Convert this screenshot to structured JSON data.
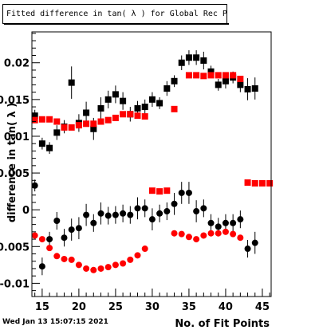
{
  "page": {
    "title": "Fitted difference in tan( λ ) for Global Rec Pion NoHits",
    "footer_date": "Wed Jan 13 15:07:15 2021"
  },
  "chart_data": {
    "type": "scatter",
    "title": "Fitted difference in tan( λ ) for Global Rec Pion NoHits",
    "xlabel": "No. of Fit Points",
    "ylabel": "difference in tan( λ )",
    "xlim": [
      13.6,
      46.2
    ],
    "ylim": [
      -0.0118,
      0.0242
    ],
    "x_ticks": [
      15,
      20,
      25,
      30,
      35,
      40,
      45
    ],
    "y_ticks": [
      {
        "value": -0.01,
        "label": "-0.01"
      },
      {
        "value": -0.005,
        "label": "-0.005"
      },
      {
        "value": 0,
        "label": "0"
      },
      {
        "value": 0.005,
        "label": "0.005"
      },
      {
        "value": 0.01,
        "label": "0.01"
      },
      {
        "value": 0.015,
        "label": "0.015"
      },
      {
        "value": 0.02,
        "label": "0.02"
      }
    ],
    "grid": false,
    "colors": {
      "black": "#000000",
      "red": "#ff0000"
    },
    "series": [
      {
        "marker": "square",
        "color": "#000000",
        "points": [
          {
            "x": 14,
            "y": 0.0128,
            "err": 0.0008
          },
          {
            "x": 15,
            "y": 0.009,
            "err": 0.0008
          },
          {
            "x": 16,
            "y": 0.0084,
            "err": 0.0008
          },
          {
            "x": 17,
            "y": 0.0105,
            "err": 0.001
          },
          {
            "x": 18,
            "y": 0.0113,
            "err": 0.0009
          },
          {
            "x": 19,
            "y": 0.0173,
            "err": 0.0022
          },
          {
            "x": 20,
            "y": 0.0118,
            "err": 0.0012
          },
          {
            "x": 21,
            "y": 0.0132,
            "err": 0.0015
          },
          {
            "x": 22,
            "y": 0.011,
            "err": 0.0015
          },
          {
            "x": 23,
            "y": 0.0138,
            "err": 0.0015
          },
          {
            "x": 24,
            "y": 0.015,
            "err": 0.0012
          },
          {
            "x": 25,
            "y": 0.0157,
            "err": 0.0012
          },
          {
            "x": 26,
            "y": 0.0148,
            "err": 0.0012
          },
          {
            "x": 27,
            "y": 0.013,
            "err": 0.001
          },
          {
            "x": 28,
            "y": 0.0138,
            "err": 0.001
          },
          {
            "x": 29,
            "y": 0.014,
            "err": 0.001
          },
          {
            "x": 30,
            "y": 0.015,
            "err": 0.001
          },
          {
            "x": 31,
            "y": 0.0145,
            "err": 0.0008
          },
          {
            "x": 32,
            "y": 0.0165,
            "err": 0.001
          },
          {
            "x": 33,
            "y": 0.0175,
            "err": 0.0008
          },
          {
            "x": 34,
            "y": 0.02,
            "err": 0.001
          },
          {
            "x": 35,
            "y": 0.0207,
            "err": 0.001
          },
          {
            "x": 36,
            "y": 0.0207,
            "err": 0.001
          },
          {
            "x": 37,
            "y": 0.0203,
            "err": 0.0012
          },
          {
            "x": 38,
            "y": 0.0188,
            "err": 0.0008
          },
          {
            "x": 39,
            "y": 0.017,
            "err": 0.0008
          },
          {
            "x": 40,
            "y": 0.0175,
            "err": 0.001
          },
          {
            "x": 41,
            "y": 0.018,
            "err": 0.0008
          },
          {
            "x": 42,
            "y": 0.017,
            "err": 0.001
          },
          {
            "x": 43,
            "y": 0.0164,
            "err": 0.0015
          },
          {
            "x": 44,
            "y": 0.0165,
            "err": 0.0015
          }
        ]
      },
      {
        "marker": "square",
        "color": "#ff0000",
        "points": [
          {
            "x": 14,
            "y": 0.0122,
            "err": 0.0003
          },
          {
            "x": 15,
            "y": 0.0123,
            "err": 0.0003
          },
          {
            "x": 16,
            "y": 0.0123,
            "err": 0.0003
          },
          {
            "x": 17,
            "y": 0.012,
            "err": 0.0003
          },
          {
            "x": 18,
            "y": 0.0112,
            "err": 0.0003
          },
          {
            "x": 19,
            "y": 0.0112,
            "err": 0.0003
          },
          {
            "x": 20,
            "y": 0.0115,
            "err": 0.0003
          },
          {
            "x": 21,
            "y": 0.0117,
            "err": 0.0003
          },
          {
            "x": 22,
            "y": 0.0117,
            "err": 0.0003
          },
          {
            "x": 23,
            "y": 0.012,
            "err": 0.0003
          },
          {
            "x": 24,
            "y": 0.0122,
            "err": 0.0003
          },
          {
            "x": 25,
            "y": 0.0125,
            "err": 0.0003
          },
          {
            "x": 26,
            "y": 0.013,
            "err": 0.0003
          },
          {
            "x": 27,
            "y": 0.013,
            "err": 0.0003
          },
          {
            "x": 28,
            "y": 0.0128,
            "err": 0.0003
          },
          {
            "x": 29,
            "y": 0.0127,
            "err": 0.0003
          },
          {
            "x": 33,
            "y": 0.0137,
            "err": 0.0003
          },
          {
            "x": 35,
            "y": 0.0183,
            "err": 0.0003
          },
          {
            "x": 36,
            "y": 0.0183,
            "err": 0.0003
          },
          {
            "x": 37,
            "y": 0.0182,
            "err": 0.0003
          },
          {
            "x": 38,
            "y": 0.0183,
            "err": 0.0003
          },
          {
            "x": 39,
            "y": 0.0183,
            "err": 0.0003
          },
          {
            "x": 40,
            "y": 0.0183,
            "err": 0.0003
          },
          {
            "x": 41,
            "y": 0.0183,
            "err": 0.0003
          },
          {
            "x": 42,
            "y": 0.0178,
            "err": 0.0003
          },
          {
            "x": 30,
            "y": 0.0026,
            "err": 0.0002
          },
          {
            "x": 31,
            "y": 0.0025,
            "err": 0.0002
          },
          {
            "x": 32,
            "y": 0.0026,
            "err": 0.0002
          },
          {
            "x": 43,
            "y": 0.0037,
            "err": 0.0002
          },
          {
            "x": 44,
            "y": 0.0036,
            "err": 0.0002
          },
          {
            "x": 45,
            "y": 0.0036,
            "err": 0.0002
          },
          {
            "x": 46,
            "y": 0.0036,
            "err": 0.0002
          }
        ]
      },
      {
        "marker": "circle",
        "color": "#000000",
        "points": [
          {
            "x": 14,
            "y": 0.0033,
            "err": 0.0008
          },
          {
            "x": 15,
            "y": -0.0077,
            "err": 0.0012
          },
          {
            "x": 16,
            "y": -0.004,
            "err": 0.001
          },
          {
            "x": 17,
            "y": -0.0015,
            "err": 0.0012
          },
          {
            "x": 18,
            "y": -0.0038,
            "err": 0.0012
          },
          {
            "x": 19,
            "y": -0.0027,
            "err": 0.0015
          },
          {
            "x": 20,
            "y": -0.0025,
            "err": 0.0015
          },
          {
            "x": 21,
            "y": -0.0007,
            "err": 0.0015
          },
          {
            "x": 22,
            "y": -0.0018,
            "err": 0.0012
          },
          {
            "x": 23,
            "y": -0.0005,
            "err": 0.0015
          },
          {
            "x": 24,
            "y": -0.0008,
            "err": 0.0012
          },
          {
            "x": 25,
            "y": -0.0007,
            "err": 0.0012
          },
          {
            "x": 26,
            "y": -0.0005,
            "err": 0.0012
          },
          {
            "x": 27,
            "y": -0.0007,
            "err": 0.0012
          },
          {
            "x": 28,
            "y": 0.0002,
            "err": 0.0015
          },
          {
            "x": 29,
            "y": 0.0002,
            "err": 0.0012
          },
          {
            "x": 30,
            "y": -0.0013,
            "err": 0.0015
          },
          {
            "x": 31,
            "y": -0.0005,
            "err": 0.0012
          },
          {
            "x": 32,
            "y": -0.0002,
            "err": 0.0012
          },
          {
            "x": 33,
            "y": 0.0008,
            "err": 0.0015
          },
          {
            "x": 34,
            "y": 0.0023,
            "err": 0.0015
          },
          {
            "x": 35,
            "y": 0.0023,
            "err": 0.0015
          },
          {
            "x": 36,
            "y": -0.0002,
            "err": 0.0015
          },
          {
            "x": 37,
            "y": 0.0002,
            "err": 0.0012
          },
          {
            "x": 38,
            "y": -0.0018,
            "err": 0.0012
          },
          {
            "x": 39,
            "y": -0.0023,
            "err": 0.0012
          },
          {
            "x": 40,
            "y": -0.0018,
            "err": 0.0012
          },
          {
            "x": 41,
            "y": -0.0018,
            "err": 0.0012
          },
          {
            "x": 42,
            "y": -0.0013,
            "err": 0.0012
          },
          {
            "x": 43,
            "y": -0.0053,
            "err": 0.0012
          },
          {
            "x": 44,
            "y": -0.0045,
            "err": 0.0015
          }
        ]
      },
      {
        "marker": "circle",
        "color": "#ff0000",
        "points": [
          {
            "x": 14,
            "y": -0.0035,
            "err": 0.0003
          },
          {
            "x": 15,
            "y": -0.004,
            "err": 0.0003
          },
          {
            "x": 16,
            "y": -0.0052,
            "err": 0.0003
          },
          {
            "x": 17,
            "y": -0.0063,
            "err": 0.0003
          },
          {
            "x": 18,
            "y": -0.0067,
            "err": 0.0003
          },
          {
            "x": 19,
            "y": -0.0068,
            "err": 0.0003
          },
          {
            "x": 20,
            "y": -0.0075,
            "err": 0.0003
          },
          {
            "x": 21,
            "y": -0.008,
            "err": 0.0003
          },
          {
            "x": 22,
            "y": -0.0082,
            "err": 0.0003
          },
          {
            "x": 23,
            "y": -0.008,
            "err": 0.0003
          },
          {
            "x": 24,
            "y": -0.0078,
            "err": 0.0003
          },
          {
            "x": 25,
            "y": -0.0075,
            "err": 0.0003
          },
          {
            "x": 26,
            "y": -0.0073,
            "err": 0.0003
          },
          {
            "x": 27,
            "y": -0.0068,
            "err": 0.0003
          },
          {
            "x": 28,
            "y": -0.0062,
            "err": 0.0003
          },
          {
            "x": 29,
            "y": -0.0053,
            "err": 0.0003
          },
          {
            "x": 33,
            "y": -0.0032,
            "err": 0.0003
          },
          {
            "x": 34,
            "y": -0.0033,
            "err": 0.0003
          },
          {
            "x": 35,
            "y": -0.0037,
            "err": 0.0003
          },
          {
            "x": 36,
            "y": -0.004,
            "err": 0.0003
          },
          {
            "x": 37,
            "y": -0.0035,
            "err": 0.0003
          },
          {
            "x": 38,
            "y": -0.0032,
            "err": 0.0003
          },
          {
            "x": 39,
            "y": -0.0032,
            "err": 0.0003
          },
          {
            "x": 40,
            "y": -0.003,
            "err": 0.0003
          },
          {
            "x": 41,
            "y": -0.0033,
            "err": 0.0003
          },
          {
            "x": 42,
            "y": -0.0038,
            "err": 0.0003
          }
        ]
      }
    ]
  }
}
